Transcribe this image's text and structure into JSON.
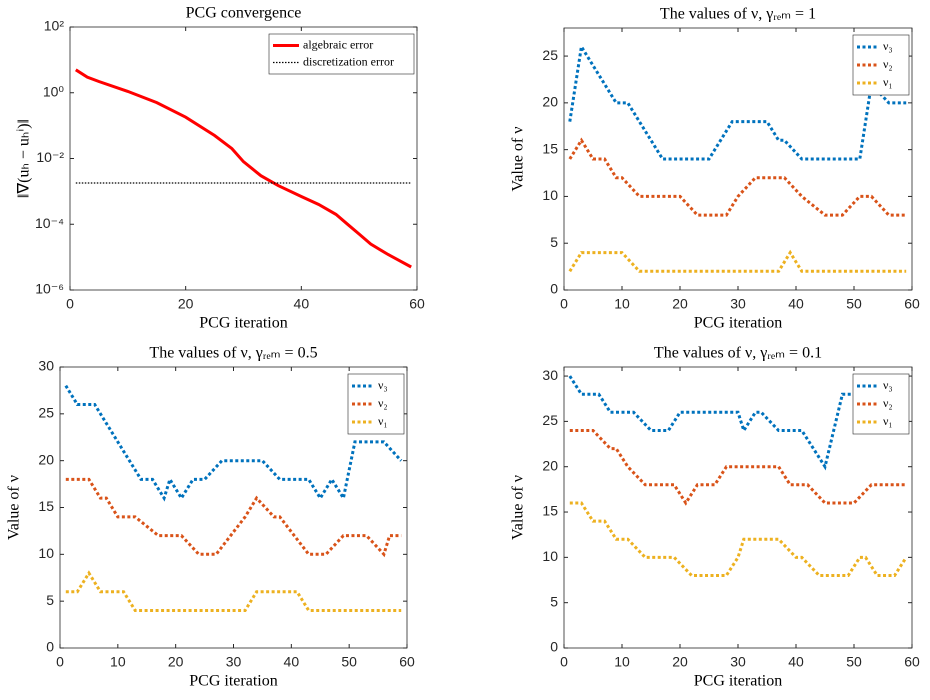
{
  "chart_data": [
    {
      "type": "line",
      "title": "PCG convergence",
      "xlabel": "PCG iteration",
      "ylabel": "‖∇(uₕ − uₕⁱ)‖",
      "log_y": true,
      "xlim": [
        0,
        60
      ],
      "xticks": [
        0,
        20,
        40,
        60
      ],
      "ylim": [
        1e-06,
        100
      ],
      "yticks": [
        {
          "value": 1e-06,
          "label": "10⁻⁶"
        },
        {
          "value": 0.0001,
          "label": "10⁻⁴"
        },
        {
          "value": 0.01,
          "label": "10⁻²"
        },
        {
          "value": 1,
          "label": "10⁰"
        },
        {
          "value": 100,
          "label": "10²"
        }
      ],
      "series": [
        {
          "name": "algebraic error",
          "color": "#ff0000",
          "style": "solid",
          "x": [
            1,
            3,
            5,
            10,
            15,
            20,
            25,
            28,
            30,
            33,
            36,
            40,
            43,
            46,
            48,
            50,
            52,
            55,
            59
          ],
          "values": [
            5,
            3,
            2.2,
            1.1,
            0.5,
            0.18,
            0.05,
            0.02,
            0.008,
            0.003,
            0.0015,
            0.0007,
            0.0004,
            0.0002,
            0.0001,
            5e-05,
            2.5e-05,
            1.2e-05,
            5e-06
          ]
        },
        {
          "name": "discretization error",
          "color": "#000000",
          "style": "dotted",
          "x": [
            1,
            59
          ],
          "values": [
            0.0018,
            0.0018
          ]
        }
      ]
    },
    {
      "type": "line",
      "title": "The values of ν, γᵣₑₘ = 1",
      "xlabel": "PCG iteration",
      "ylabel": "Value of ν",
      "xlim": [
        0,
        60
      ],
      "xticks": [
        0,
        10,
        20,
        30,
        40,
        50,
        60
      ],
      "ylim": [
        0,
        28
      ],
      "yticks": [
        0,
        5,
        10,
        15,
        20,
        25
      ],
      "series": [
        {
          "name": "ν₃",
          "color": "#0072bd",
          "style": "dotted",
          "x": [
            1,
            3,
            9,
            11,
            13,
            17,
            25,
            29,
            35,
            37,
            38,
            41,
            51,
            53,
            56,
            59
          ],
          "values": [
            18,
            26,
            20,
            20,
            18,
            14,
            14,
            18,
            18,
            16,
            16,
            14,
            14,
            22,
            20,
            20
          ]
        },
        {
          "name": "ν₂",
          "color": "#d95319",
          "style": "dotted",
          "x": [
            1,
            3,
            5,
            7,
            9,
            10,
            13,
            20,
            23,
            28,
            30,
            33,
            38,
            41,
            45,
            48,
            51,
            53,
            56,
            59
          ],
          "values": [
            14,
            16,
            14,
            14,
            12,
            12,
            10,
            10,
            8,
            8,
            10,
            12,
            12,
            10,
            8,
            8,
            10,
            10,
            8,
            8
          ]
        },
        {
          "name": "ν₁",
          "color": "#edb120",
          "style": "dotted",
          "x": [
            1,
            3,
            10,
            13,
            37,
            39,
            41,
            59
          ],
          "values": [
            2,
            4,
            4,
            2,
            2,
            4,
            2,
            2
          ]
        }
      ]
    },
    {
      "type": "line",
      "title": "The values of ν, γᵣₑₘ = 0.5",
      "xlabel": "PCG iteration",
      "ylabel": "Value of ν",
      "xlim": [
        0,
        60
      ],
      "xticks": [
        0,
        10,
        20,
        30,
        40,
        50,
        60
      ],
      "ylim": [
        0,
        30
      ],
      "yticks": [
        0,
        5,
        10,
        15,
        20,
        25,
        30
      ],
      "series": [
        {
          "name": "ν₃",
          "color": "#0072bd",
          "style": "dotted",
          "x": [
            1,
            3,
            6,
            14,
            16,
            18,
            19,
            21,
            23,
            25,
            28,
            35,
            38,
            43,
            45,
            47,
            49,
            51,
            56,
            59
          ],
          "values": [
            28,
            26,
            26,
            18,
            18,
            16,
            18,
            16,
            18,
            18,
            20,
            20,
            18,
            18,
            16,
            18,
            16,
            22,
            22,
            20
          ]
        },
        {
          "name": "ν₂",
          "color": "#d95319",
          "style": "dotted",
          "x": [
            1,
            5,
            7,
            8,
            10,
            13,
            17,
            21,
            24,
            27,
            32,
            34,
            37,
            38,
            43,
            46,
            49,
            53,
            56,
            57,
            59
          ],
          "values": [
            18,
            18,
            16,
            16,
            14,
            14,
            12,
            12,
            10,
            10,
            14,
            16,
            14,
            14,
            10,
            10,
            12,
            12,
            10,
            12,
            12
          ]
        },
        {
          "name": "ν₁",
          "color": "#edb120",
          "style": "dotted",
          "x": [
            1,
            3,
            5,
            7,
            11,
            13,
            32,
            34,
            41,
            43,
            59
          ],
          "values": [
            6,
            6,
            8,
            6,
            6,
            4,
            4,
            6,
            6,
            4,
            4
          ]
        }
      ]
    },
    {
      "type": "line",
      "title": "The values of ν, γᵣₑₘ = 0.1",
      "xlabel": "PCG iteration",
      "ylabel": "Value of ν",
      "xlim": [
        0,
        60
      ],
      "xticks": [
        0,
        10,
        20,
        30,
        40,
        50,
        60
      ],
      "ylim": [
        0,
        31
      ],
      "yticks": [
        0,
        5,
        10,
        15,
        20,
        25,
        30
      ],
      "series": [
        {
          "name": "ν₃",
          "color": "#0072bd",
          "style": "dotted",
          "x": [
            1,
            3,
            6,
            8,
            12,
            15,
            18,
            20,
            30,
            31,
            33,
            34,
            37,
            41,
            45,
            48,
            50,
            52,
            57,
            59
          ],
          "values": [
            30,
            28,
            28,
            26,
            26,
            24,
            24,
            26,
            26,
            24,
            26,
            26,
            24,
            24,
            20,
            28,
            28,
            26,
            24,
            24
          ]
        },
        {
          "name": "ν₂",
          "color": "#d95319",
          "style": "dotted",
          "x": [
            1,
            5,
            8,
            9,
            11,
            14,
            19,
            21,
            23,
            26,
            28,
            37,
            39,
            42,
            45,
            50,
            53,
            59
          ],
          "values": [
            24,
            24,
            22,
            22,
            20,
            18,
            18,
            16,
            18,
            18,
            20,
            20,
            18,
            18,
            16,
            16,
            18,
            18
          ]
        },
        {
          "name": "ν₁",
          "color": "#edb120",
          "style": "dotted",
          "x": [
            1,
            3,
            5,
            7,
            9,
            11,
            14,
            19,
            22,
            28,
            30,
            31,
            37,
            40,
            41,
            44,
            49,
            51,
            52,
            54,
            57,
            59
          ],
          "values": [
            16,
            16,
            14,
            14,
            12,
            12,
            10,
            10,
            8,
            8,
            10,
            12,
            12,
            10,
            10,
            8,
            8,
            10,
            10,
            8,
            8,
            10
          ]
        }
      ]
    }
  ]
}
